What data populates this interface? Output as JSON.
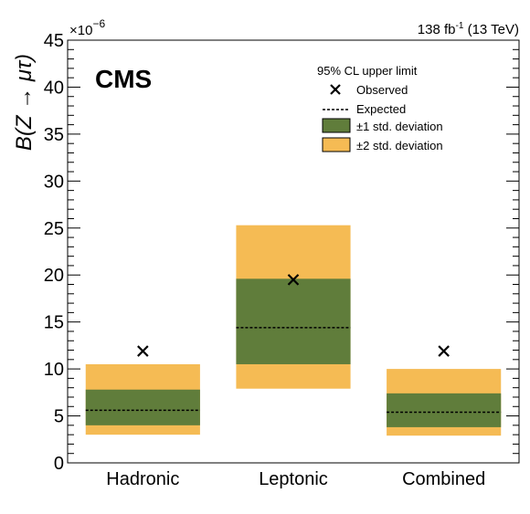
{
  "chart_data": {
    "type": "bar",
    "brand": "CMS",
    "lumi_label": "138 fb",
    "lumi_exp": "-1",
    "energy_label": " (13 TeV)",
    "ylabel": "B(Z → μτ)",
    "y_multiplier": "×10",
    "y_multiplier_exp": "−6",
    "ylim": [
      0,
      45
    ],
    "yticks": [
      0,
      5,
      10,
      15,
      20,
      25,
      30,
      35,
      40,
      45
    ],
    "categories": [
      "Hadronic",
      "Leptonic",
      "Combined"
    ],
    "series": [
      {
        "name": "Observed",
        "values": [
          11.9,
          19.5,
          11.9
        ]
      },
      {
        "name": "Expected",
        "values": [
          5.6,
          14.4,
          5.4
        ]
      },
      {
        "name": "±1 std. deviation",
        "low": [
          4.0,
          10.5,
          3.8
        ],
        "high": [
          7.8,
          19.6,
          7.4
        ]
      },
      {
        "name": "±2 std. deviation",
        "low": [
          3.0,
          7.9,
          2.9
        ],
        "high": [
          10.5,
          25.3,
          10.0
        ]
      }
    ],
    "legend": {
      "title": "95% CL upper limit",
      "position": "top-right",
      "entries": [
        "Observed",
        "Expected",
        "±1 std. deviation",
        "±2 std. deviation"
      ]
    },
    "colors": {
      "one_sigma": "#607d3b",
      "two_sigma": "#f5bb54",
      "observed": "#000000",
      "expected": "#000000"
    },
    "grid": false
  }
}
